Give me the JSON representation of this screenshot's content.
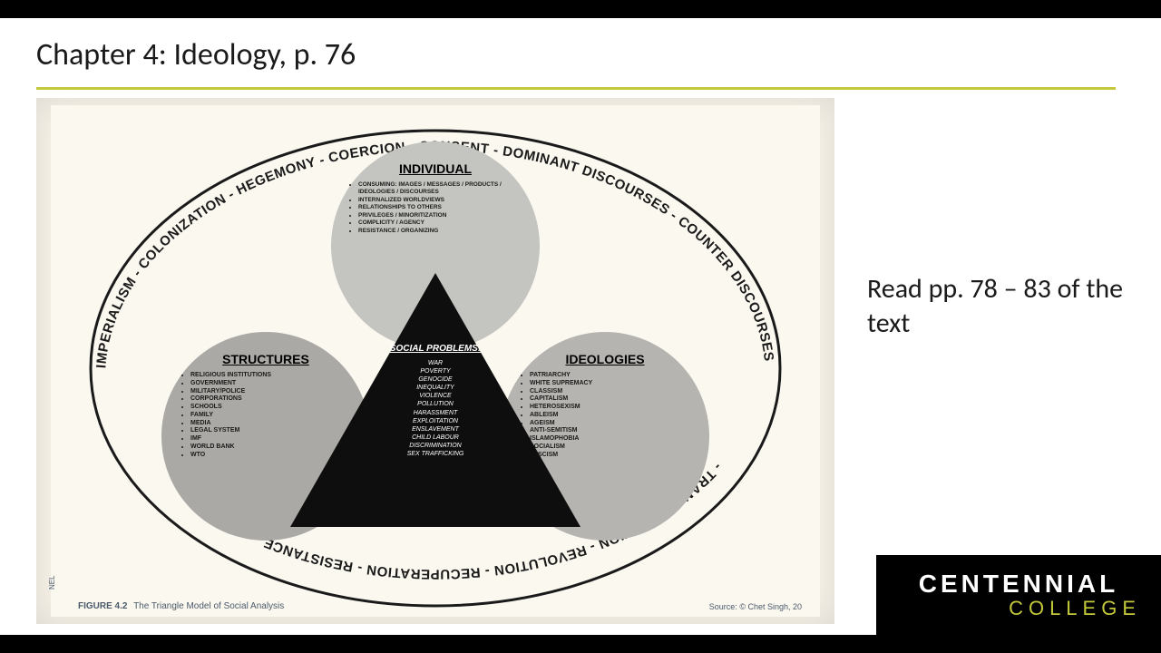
{
  "title": "Chapter 4: Ideology, p. 76",
  "underline_color": "#c3c93a",
  "side_note": "Read pp. 78 – 83 of the text",
  "logo": {
    "line1": "CENTENNIAL",
    "line2": "COLLEGE",
    "bg": "#000000",
    "accent": "#c3c93a"
  },
  "diagram": {
    "background": "#fbf8f0",
    "ellipse_stroke": "#1a1a1a",
    "ring_text_top": "IMPERIALISM - COLONIZATION - HEGEMONY - COERCION - CONSENT - DOMINANT DISCOURSES - COUNTER DISCOURSES",
    "ring_text_bottom": "- TRANSFORMATION - REVOLUTION - RECUPERATION - RESISTANCE -",
    "triangle": {
      "fill": "#0e0e0e",
      "title": "SOCIAL PROBLEMS:",
      "items": [
        "WAR",
        "POVERTY",
        "GENOCIDE",
        "INEQUALITY",
        "VIOLENCE",
        "POLLUTION",
        "HARASSMENT",
        "EXPLOITATION",
        "ENSLAVEMENT",
        "CHILD LABOUR",
        "DISCRIMINATION",
        "SEX TRAFFICKING"
      ]
    },
    "circles": {
      "individual": {
        "title": "INDIVIDUAL",
        "fill": "#c4c4c0",
        "items": [
          "CONSUMING: IMAGES / MESSAGES / PRODUCTS / IDEOLOGIES / DISCOURSES",
          "INTERNALIZED WORLDVIEWS",
          "RELATIONSHIPS TO OTHERS",
          "PRIVILEGES / MINORITIZATION",
          "COMPLICITY / AGENCY",
          "RESISTANCE / ORGANIZING"
        ]
      },
      "structures": {
        "title": "STRUCTURES",
        "fill": "#aba9a5",
        "items": [
          "RELIGIOUS INSTITUTIONS",
          "GOVERNMENT",
          "MILITARY/POLICE",
          "CORPORATIONS",
          "SCHOOLS",
          "FAMILY",
          "MEDIA",
          "LEGAL SYSTEM",
          "IMF",
          "WORLD BANK",
          "WTO"
        ]
      },
      "ideologies": {
        "title": "IDEOLOGIES",
        "fill": "#b6b4b0",
        "items": [
          "PATRIARCHY",
          "WHITE SUPREMACY",
          "CLASSISM",
          "CAPITALISM",
          "HETEROSEXISM",
          "ABLEISM",
          "AGEISM",
          "ANTI-SEMITISM",
          "ISLAMOPHOBIA",
          "SOCIALISM",
          "FASCISM"
        ]
      }
    },
    "figure_num": "FIGURE 4.2",
    "figure_caption": "The Triangle Model of Social Analysis",
    "source": "Source: © Chet Singh, 20",
    "publisher_mark": "NEL"
  }
}
